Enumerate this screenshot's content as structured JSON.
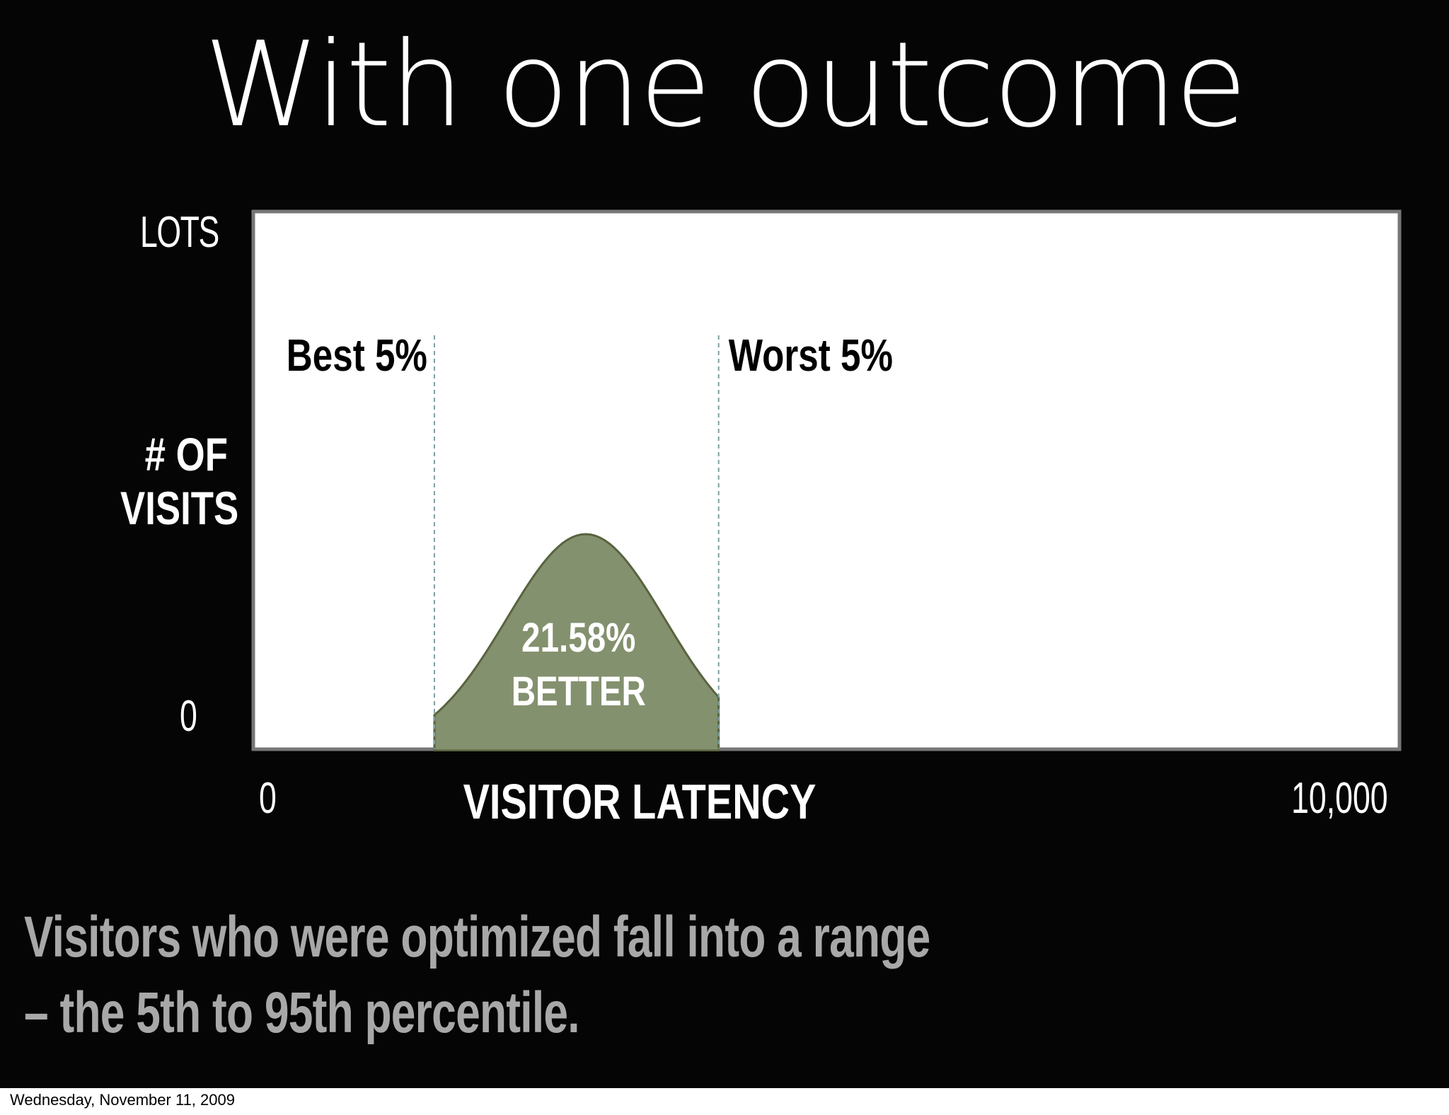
{
  "slide": {
    "title": "With one outcome",
    "caption_line1": "Visitors who were optimized fall into a range",
    "caption_line2": "– the 5th to 95th percentile.",
    "footer_date": "Wednesday, November 11, 2009"
  },
  "colors": {
    "background": "#050505",
    "plot_background": "#ffffff",
    "curve_fill": "#84916f",
    "curve_stroke": "#59633f",
    "guide_line": "#7fa0a3",
    "caption_text": "#a8a8a8"
  },
  "chart_data": {
    "type": "area",
    "title": "",
    "xlabel": "VISITOR LATENCY",
    "ylabel": "# OF VISITS",
    "x_ticks": [
      "0",
      "10,000"
    ],
    "y_ticks": [
      "0",
      "LOTS"
    ],
    "xlim": [
      0,
      10000
    ],
    "ylim": [
      0,
      1
    ],
    "markers": [
      {
        "label": "Best 5%",
        "x": 1580
      },
      {
        "label": "Worst 5%",
        "x": 4060
      }
    ],
    "highlight": {
      "line1": "21.58%",
      "line2": "BETTER",
      "x_start": 1580,
      "x_end": 4060,
      "peak_x": 2900,
      "peak_y": 0.4
    }
  }
}
